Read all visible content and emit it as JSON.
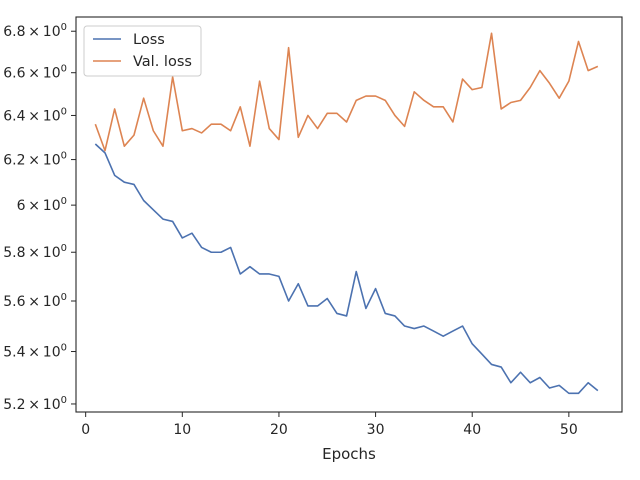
{
  "chart_data": {
    "type": "line",
    "title": "",
    "xlabel": "Epochs",
    "ylabel": "",
    "xlim": [
      -1,
      55.5
    ],
    "ylim": [
      5.17,
      6.87
    ],
    "y_scale": "log",
    "grid": false,
    "legend_position": "top-left",
    "x_ticks": [
      0,
      10,
      20,
      30,
      40,
      50
    ],
    "x_tick_labels": [
      "0",
      "10",
      "20",
      "30",
      "40",
      "50"
    ],
    "y_ticks": [
      5.2,
      5.4,
      5.6,
      5.8,
      6.0,
      6.2,
      6.4,
      6.6,
      6.8
    ],
    "y_tick_labels": [
      {
        "mant": "5.2",
        "exp": "0"
      },
      {
        "mant": "5.4",
        "exp": "0"
      },
      {
        "mant": "5.6",
        "exp": "0"
      },
      {
        "mant": "5.8",
        "exp": "0"
      },
      {
        "mant": "6",
        "exp": "0"
      },
      {
        "mant": "6.2",
        "exp": "0"
      },
      {
        "mant": "6.4",
        "exp": "0"
      },
      {
        "mant": "6.6",
        "exp": "0"
      },
      {
        "mant": "6.8",
        "exp": "0"
      }
    ],
    "series": [
      {
        "name": "Loss",
        "color": "#4c72b0",
        "x": [
          1,
          2,
          3,
          4,
          5,
          6,
          7,
          8,
          9,
          10,
          11,
          12,
          13,
          14,
          15,
          16,
          17,
          18,
          19,
          20,
          21,
          22,
          23,
          24,
          25,
          26,
          27,
          28,
          29,
          30,
          31,
          32,
          33,
          34,
          35,
          36,
          37,
          38,
          39,
          40,
          41,
          42,
          43,
          44,
          45,
          46,
          47,
          48,
          49,
          50,
          51,
          52,
          53
        ],
        "values": [
          6.27,
          6.23,
          6.13,
          6.1,
          6.09,
          6.02,
          5.98,
          5.94,
          5.93,
          5.86,
          5.88,
          5.82,
          5.8,
          5.8,
          5.82,
          5.71,
          5.74,
          5.71,
          5.71,
          5.7,
          5.6,
          5.67,
          5.58,
          5.58,
          5.61,
          5.55,
          5.54,
          5.72,
          5.57,
          5.65,
          5.55,
          5.54,
          5.5,
          5.49,
          5.5,
          5.48,
          5.46,
          5.48,
          5.5,
          5.43,
          5.39,
          5.35,
          5.34,
          5.28,
          5.32,
          5.28,
          5.3,
          5.26,
          5.27,
          5.24,
          5.24,
          5.28,
          5.25
        ]
      },
      {
        "name": "Val. loss",
        "color": "#dd8452",
        "x": [
          1,
          2,
          3,
          4,
          5,
          6,
          7,
          8,
          9,
          10,
          11,
          12,
          13,
          14,
          15,
          16,
          17,
          18,
          19,
          20,
          21,
          22,
          23,
          24,
          25,
          26,
          27,
          28,
          29,
          30,
          31,
          32,
          33,
          34,
          35,
          36,
          37,
          38,
          39,
          40,
          41,
          42,
          43,
          44,
          45,
          46,
          47,
          48,
          49,
          50,
          51,
          52,
          53
        ],
        "values": [
          6.36,
          6.24,
          6.43,
          6.26,
          6.31,
          6.48,
          6.33,
          6.26,
          6.58,
          6.33,
          6.34,
          6.32,
          6.36,
          6.36,
          6.33,
          6.44,
          6.26,
          6.56,
          6.34,
          6.29,
          6.72,
          6.3,
          6.4,
          6.34,
          6.41,
          6.41,
          6.37,
          6.47,
          6.49,
          6.49,
          6.47,
          6.4,
          6.35,
          6.51,
          6.47,
          6.44,
          6.44,
          6.37,
          6.57,
          6.52,
          6.53,
          6.79,
          6.43,
          6.46,
          6.47,
          6.53,
          6.61,
          6.55,
          6.48,
          6.56,
          6.75,
          6.61,
          6.63
        ]
      }
    ]
  }
}
